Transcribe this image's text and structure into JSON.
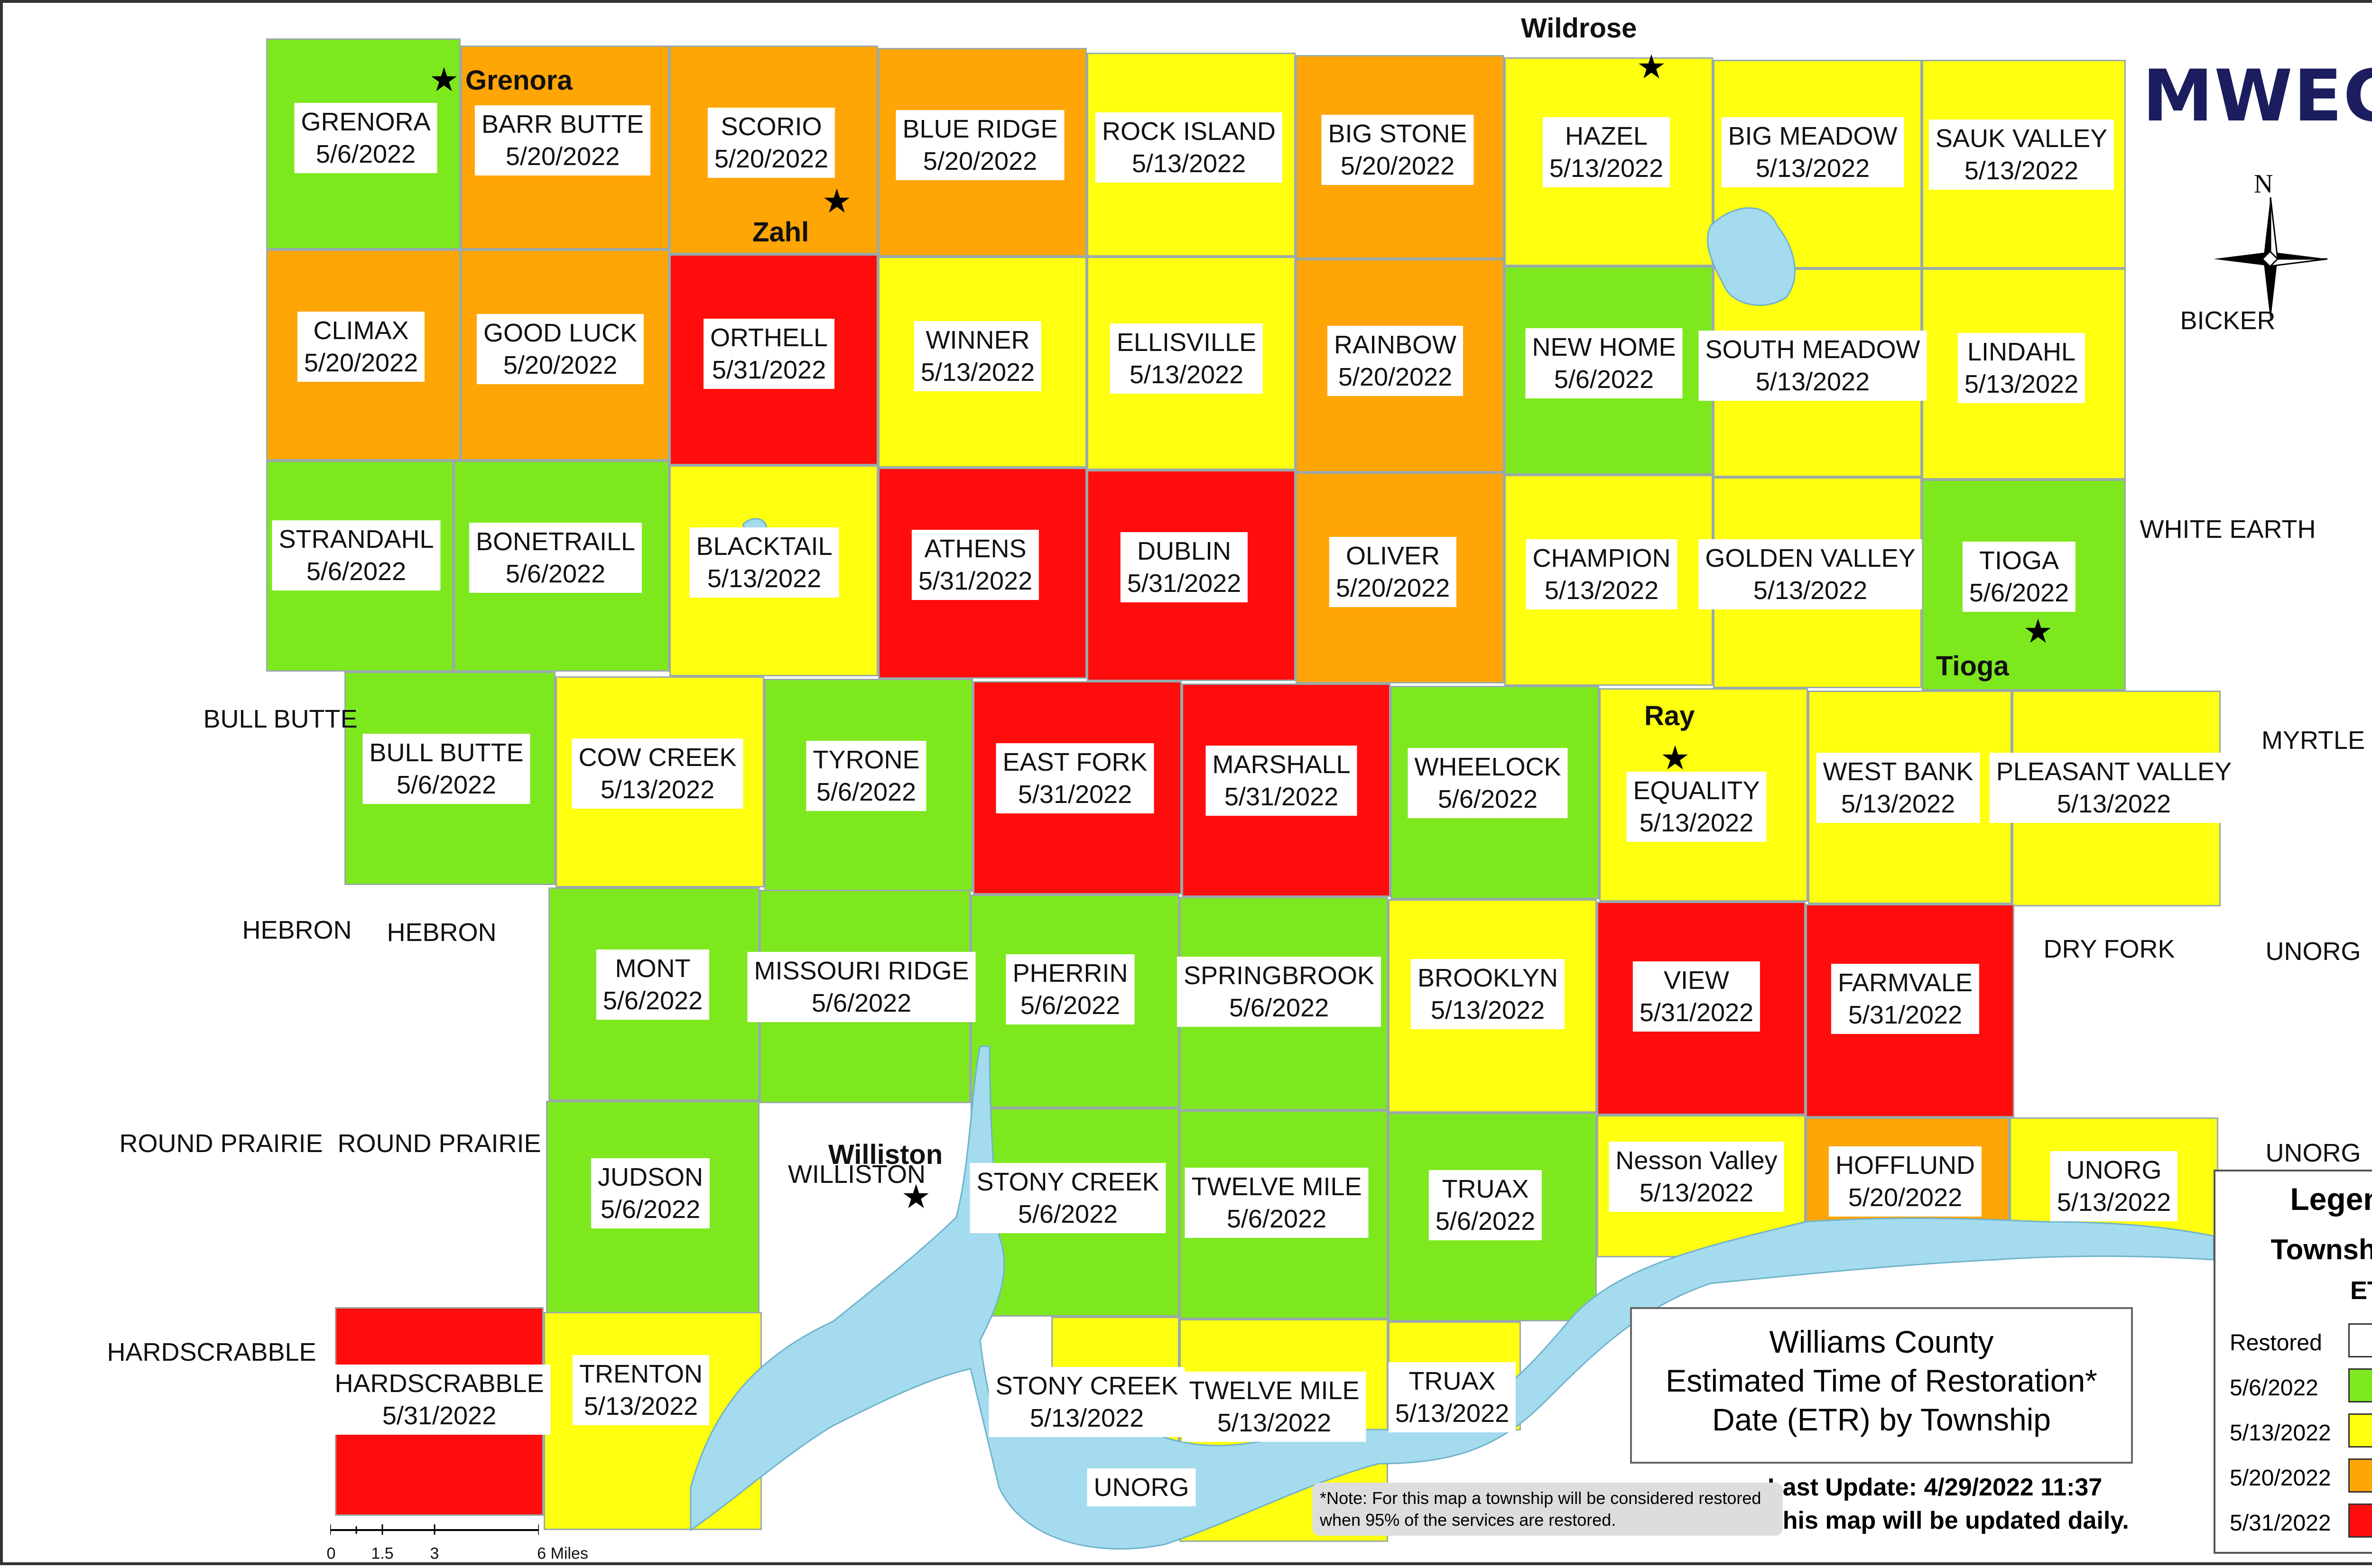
{
  "title": {
    "line1": "Williams County",
    "line2": "Estimated Time of Restoration*",
    "line3": "Date (ETR) by Township"
  },
  "last_update": "Last Update: 4/29/2022 11:37",
  "daily_note": "This map will be updated daily.",
  "footnote": "*Note: For this map a township will be considered restored when 95% of the services are restored.",
  "logo": "MWEC",
  "compass_label": "N",
  "legend": {
    "title": "Legend",
    "subtitle": "Township",
    "etr_label": "ETR",
    "items": [
      {
        "label": "Restored",
        "color": "#ffffff"
      },
      {
        "label": "5/6/2022",
        "color": "#7ee81f"
      },
      {
        "label": "5/13/2022",
        "color": "#ffff10"
      },
      {
        "label": "5/20/2022",
        "color": "#ffa505"
      },
      {
        "label": "5/31/2022",
        "color": "#ff0d0d"
      }
    ]
  },
  "scale": {
    "ticks": [
      "0",
      "1.5",
      "3",
      "6 Miles"
    ]
  },
  "townships": [
    {
      "name": "GRENORA",
      "etr": "5/6/2022",
      "status": "green"
    },
    {
      "name": "BARR BUTTE",
      "etr": "5/20/2022",
      "status": "orange"
    },
    {
      "name": "SCORIO",
      "etr": "5/20/2022",
      "status": "orange"
    },
    {
      "name": "BLUE RIDGE",
      "etr": "5/20/2022",
      "status": "orange"
    },
    {
      "name": "ROCK ISLAND",
      "etr": "5/13/2022",
      "status": "yellow"
    },
    {
      "name": "BIG STONE",
      "etr": "5/20/2022",
      "status": "orange"
    },
    {
      "name": "HAZEL",
      "etr": "5/13/2022",
      "status": "yellow"
    },
    {
      "name": "BIG MEADOW",
      "etr": "5/13/2022",
      "status": "yellow"
    },
    {
      "name": "SAUK VALLEY",
      "etr": "5/13/2022",
      "status": "yellow"
    },
    {
      "name": "CLIMAX",
      "etr": "5/20/2022",
      "status": "orange"
    },
    {
      "name": "GOOD LUCK",
      "etr": "5/20/2022",
      "status": "orange"
    },
    {
      "name": "ORTHELL",
      "etr": "5/31/2022",
      "status": "red"
    },
    {
      "name": "WINNER",
      "etr": "5/13/2022",
      "status": "yellow"
    },
    {
      "name": "ELLISVILLE",
      "etr": "5/13/2022",
      "status": "yellow"
    },
    {
      "name": "RAINBOW",
      "etr": "5/20/2022",
      "status": "orange"
    },
    {
      "name": "NEW HOME",
      "etr": "5/6/2022",
      "status": "green"
    },
    {
      "name": "SOUTH MEADOW",
      "etr": "5/13/2022",
      "status": "yellow"
    },
    {
      "name": "LINDAHL",
      "etr": "5/13/2022",
      "status": "yellow"
    },
    {
      "name": "STRANDAHL",
      "etr": "5/6/2022",
      "status": "green"
    },
    {
      "name": "BONETRAILL",
      "etr": "5/6/2022",
      "status": "green"
    },
    {
      "name": "BLACKTAIL",
      "etr": "5/13/2022",
      "status": "yellow"
    },
    {
      "name": "ATHENS",
      "etr": "5/31/2022",
      "status": "red"
    },
    {
      "name": "DUBLIN",
      "etr": "5/31/2022",
      "status": "red"
    },
    {
      "name": "OLIVER",
      "etr": "5/20/2022",
      "status": "orange"
    },
    {
      "name": "CHAMPION",
      "etr": "5/13/2022",
      "status": "yellow"
    },
    {
      "name": "GOLDEN VALLEY",
      "etr": "5/13/2022",
      "status": "yellow"
    },
    {
      "name": "TIOGA",
      "etr": "5/6/2022",
      "status": "green"
    },
    {
      "name": "BULL BUTTE",
      "etr": "5/6/2022",
      "status": "green"
    },
    {
      "name": "COW CREEK",
      "etr": "5/13/2022",
      "status": "yellow"
    },
    {
      "name": "TYRONE",
      "etr": "5/6/2022",
      "status": "green"
    },
    {
      "name": "EAST FORK",
      "etr": "5/31/2022",
      "status": "red"
    },
    {
      "name": "MARSHALL",
      "etr": "5/31/2022",
      "status": "red"
    },
    {
      "name": "WHEELOCK",
      "etr": "5/6/2022",
      "status": "green"
    },
    {
      "name": "EQUALITY",
      "etr": "5/13/2022",
      "status": "yellow"
    },
    {
      "name": "WEST BANK",
      "etr": "5/13/2022",
      "status": "yellow"
    },
    {
      "name": "PLEASANT VALLEY",
      "etr": "5/13/2022",
      "status": "yellow"
    },
    {
      "name": "MONT",
      "etr": "5/6/2022",
      "status": "green"
    },
    {
      "name": "MISSOURI RIDGE",
      "etr": "5/6/2022",
      "status": "green"
    },
    {
      "name": "PHERRIN",
      "etr": "5/6/2022",
      "status": "green"
    },
    {
      "name": "SPRINGBROOK",
      "etr": "5/6/2022",
      "status": "green"
    },
    {
      "name": "BROOKLYN",
      "etr": "5/13/2022",
      "status": "yellow"
    },
    {
      "name": "VIEW",
      "etr": "5/31/2022",
      "status": "red"
    },
    {
      "name": "FARMVALE",
      "etr": "5/31/2022",
      "status": "red"
    },
    {
      "name": "JUDSON",
      "etr": "5/6/2022",
      "status": "green"
    },
    {
      "name": "STONY CREEK",
      "etr": "5/6/2022",
      "status": "green"
    },
    {
      "name": "TWELVE MILE",
      "etr": "5/6/2022",
      "status": "green"
    },
    {
      "name": "TRUAX",
      "etr": "5/6/2022",
      "status": "green"
    },
    {
      "name": "Nesson Valley",
      "etr": "5/13/2022",
      "status": "yellow"
    },
    {
      "name": "HOFFLUND",
      "etr": "5/20/2022",
      "status": "orange"
    },
    {
      "name": "UNORG",
      "etr": "5/13/2022",
      "status": "yellow"
    },
    {
      "name": "HARDSCRABBLE",
      "etr": "5/31/2022",
      "status": "red"
    },
    {
      "name": "TRENTON",
      "etr": "5/13/2022",
      "status": "yellow"
    },
    {
      "name": "STONY CREEK",
      "etr": "5/13/2022",
      "status": "yellow"
    },
    {
      "name": "TWELVE MILE",
      "etr": "5/13/2022",
      "status": "yellow"
    },
    {
      "name": "TRUAX",
      "etr": "5/13/2022",
      "status": "yellow"
    },
    {
      "name": "UNORG",
      "etr": "",
      "status": "yellow"
    }
  ],
  "outside_labels": [
    "BICKER",
    "WHITE EARTH",
    "BULL BUTTE",
    "MYRTLE",
    "HEBRON",
    "HEBRON",
    "DRY FORK",
    "UNORG",
    "ROUND PRAIRIE",
    "ROUND PRAIRIE",
    "UNORG",
    "HARDSCRABBLE",
    "WILLISTON"
  ],
  "towns": [
    "Wildrose",
    "Grenora",
    "Zahl",
    "Tioga",
    "Ray",
    "Williston"
  ]
}
